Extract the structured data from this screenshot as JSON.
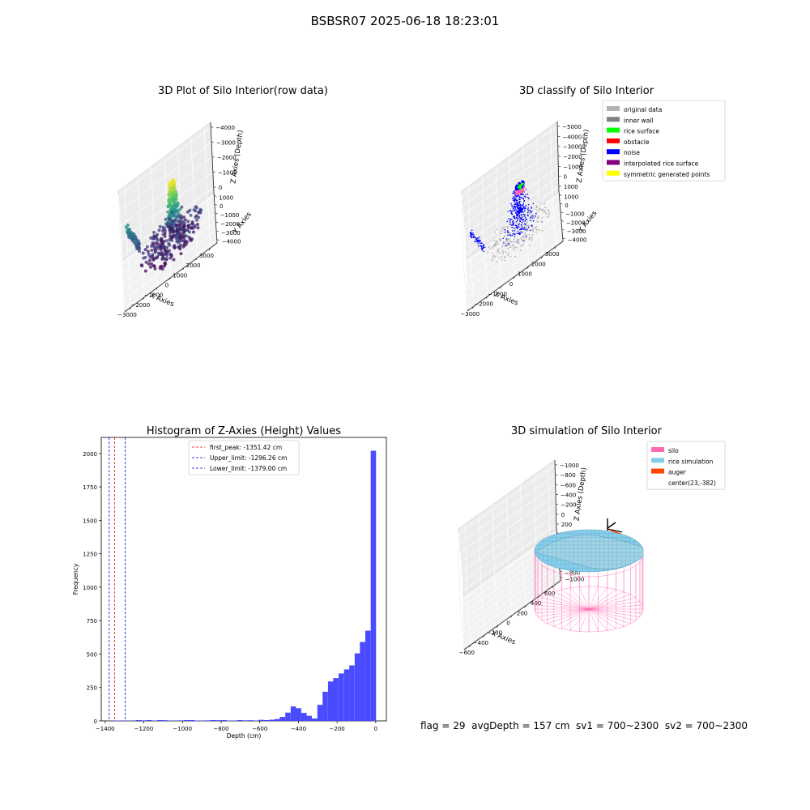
{
  "suptitle": "BSBSR07 2025-06-18 18:23:01",
  "status_text": "flag = 29  avgDepth = 157 cm  sv1 = 700~2300  sv2 = 700~2300",
  "colors": {
    "hist_bar": "#4a4aff",
    "first_peak": "#ff0000",
    "limit_lines": "#0000ff",
    "original": "#b3b3b3",
    "inner_wall": "#7f7f7f",
    "rice_surface": "#00ff00",
    "obstacle": "#ff0000",
    "noise": "#0000ff",
    "interpolated": "#800080",
    "symmetric": "#ffff00",
    "silo": "#ff69b4",
    "rice_sim": "#87ceeb",
    "auger": "#ff4500"
  },
  "chart_data": [
    {
      "type": "scatter",
      "title": "3D Plot of Silo Interior(row data)",
      "xlabel": "X Axies",
      "ylabel": "Y Axies",
      "zlabel": "Z Axies (Depth)",
      "xticks": [
        "−3000",
        "−2000",
        "−1000",
        "0",
        "1000",
        "2000",
        "3000"
      ],
      "yticks": [
        "1000",
        "0",
        "−1000",
        "−2000",
        "−3000",
        "−4000"
      ],
      "zticks": [
        "0",
        "−1000",
        "−2000",
        "−3000",
        "−4000"
      ],
      "xlim": [
        -3500,
        3500
      ],
      "ylim": [
        -4200,
        1200
      ],
      "zlim": [
        -4600,
        400
      ],
      "colormap": "viridis"
    },
    {
      "type": "scatter",
      "title": "3D classify of Silo Interior",
      "xlabel": "X Axies",
      "ylabel": "Y Axies",
      "zlabel": "Z Axies (Depth)",
      "xticks": [
        "−3000",
        "−2000",
        "−1000",
        "0",
        "1000",
        "2000",
        "3000"
      ],
      "yticks": [
        "1000",
        "0",
        "−1000",
        "−2000",
        "−3000",
        "−4000"
      ],
      "zticks": [
        "1000",
        "0",
        "−1000",
        "−2000",
        "−3000",
        "−4000",
        "−5000"
      ],
      "xlim": [
        -3500,
        3500
      ],
      "ylim": [
        -4500,
        1500
      ],
      "zlim": [
        -5500,
        1200
      ],
      "legend_position": "upper-right",
      "legend": [
        {
          "label": "original data",
          "color": "#b3b3b3"
        },
        {
          "label": "inner wall",
          "color": "#7f7f7f"
        },
        {
          "label": "rice surface",
          "color": "#00ff00"
        },
        {
          "label": "obstacle",
          "color": "#ff0000"
        },
        {
          "label": "noise",
          "color": "#0000ff"
        },
        {
          "label": "interpolated rice surface",
          "color": "#800080"
        },
        {
          "label": "symmetric generated points",
          "color": "#ffff00"
        }
      ]
    },
    {
      "type": "bar",
      "title": "Histogram of Z-Axies (Height) Values",
      "xlabel": "Depth (cm)",
      "ylabel": "Frequency",
      "xlim": [
        -1420,
        55
      ],
      "ylim": [
        0,
        2120
      ],
      "xticks": [
        -1400,
        -1200,
        -1000,
        -800,
        -600,
        -400,
        -200,
        0
      ],
      "yticks": [
        0,
        250,
        500,
        750,
        1000,
        1250,
        1500,
        1750,
        2000
      ],
      "bin_width": 27.6,
      "bins": [
        [
          -1379,
          1
        ],
        [
          -1351,
          3
        ],
        [
          -1324,
          2
        ],
        [
          -1296,
          2
        ],
        [
          -1268,
          1
        ],
        [
          -1241,
          6
        ],
        [
          -1213,
          4
        ],
        [
          -1186,
          6
        ],
        [
          -1158,
          3
        ],
        [
          -1130,
          6
        ],
        [
          -1103,
          5
        ],
        [
          -1075,
          2
        ],
        [
          -1048,
          2
        ],
        [
          -1020,
          4
        ],
        [
          -992,
          6
        ],
        [
          -965,
          6
        ],
        [
          -937,
          3
        ],
        [
          -910,
          2
        ],
        [
          -882,
          4
        ],
        [
          -854,
          6
        ],
        [
          -827,
          5
        ],
        [
          -799,
          6
        ],
        [
          -772,
          3
        ],
        [
          -744,
          2
        ],
        [
          -716,
          6
        ],
        [
          -689,
          4
        ],
        [
          -661,
          5
        ],
        [
          -634,
          3
        ],
        [
          -606,
          8
        ],
        [
          -578,
          6
        ],
        [
          -551,
          9
        ],
        [
          -523,
          14
        ],
        [
          -496,
          30
        ],
        [
          -468,
          62
        ],
        [
          -440,
          108
        ],
        [
          -413,
          95
        ],
        [
          -385,
          60
        ],
        [
          -358,
          38
        ],
        [
          -330,
          18
        ],
        [
          -302,
          120
        ],
        [
          -275,
          218
        ],
        [
          -247,
          295
        ],
        [
          -220,
          320
        ],
        [
          -192,
          355
        ],
        [
          -164,
          385
        ],
        [
          -137,
          415
        ],
        [
          -109,
          505
        ],
        [
          -82,
          590
        ],
        [
          -54,
          675
        ],
        [
          -26,
          2020
        ]
      ],
      "vlines": [
        {
          "label": "first_peak: -1351.42 cm",
          "x": -1351.42,
          "color": "#ff0000"
        },
        {
          "label": "Upper_limit: -1296.26 cm",
          "x": -1296.26,
          "color": "#0000ff"
        },
        {
          "label": "Lower_limit: -1379.00 cm",
          "x": -1379.0,
          "color": "#0000ff"
        }
      ],
      "legend_position": "upper-center"
    },
    {
      "type": "area",
      "title": "3D simulation of Silo Interior",
      "xlabel": "X Axies",
      "ylabel": "Y Axies",
      "zlabel": "Z Axies (Depth)",
      "xticks": [
        "−600",
        "−400",
        "−200",
        "0",
        "200",
        "400",
        "600"
      ],
      "yticks": [
        "400",
        "200",
        "0",
        "−200",
        "−400",
        "−600",
        "−800",
        "−1000"
      ],
      "zticks": [
        "200",
        "0",
        "−200",
        "−400",
        "−600",
        "−800",
        "−1000"
      ],
      "xlim": [
        -700,
        700
      ],
      "ylim": [
        -1100,
        500
      ],
      "zlim": [
        -1200,
        350
      ],
      "legend_position": "upper-right",
      "legend": [
        {
          "label": "silo",
          "color": "#ff69b4"
        },
        {
          "label": "rice simulation",
          "color": "#87ceeb"
        },
        {
          "label": "auger",
          "color": "#ff4500"
        },
        {
          "label": "center(23,-382)",
          "color": ""
        }
      ]
    }
  ]
}
